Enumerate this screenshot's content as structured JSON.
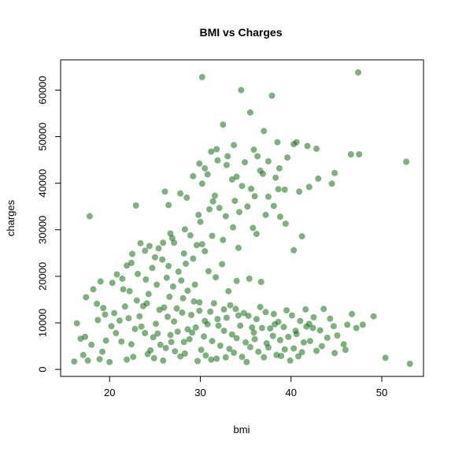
{
  "chart_data": {
    "type": "scatter",
    "title": "BMI vs Charges",
    "xlabel": "bmi",
    "ylabel": "charges",
    "xlim": [
      14.6,
      54.6
    ],
    "ylim": [
      -1500,
      66500
    ],
    "x_ticks": [
      20,
      30,
      40,
      50
    ],
    "y_ticks": [
      0,
      10000,
      20000,
      30000,
      40000,
      50000,
      60000
    ],
    "point_color": "#006400",
    "point_opacity": 0.5,
    "grid": false,
    "legend": "none",
    "series": [
      {
        "points": [
          [
            17.8,
            32900
          ],
          [
            22.9,
            35200
          ],
          [
            30.2,
            62800
          ],
          [
            34.5,
            60000
          ],
          [
            47.4,
            63800
          ],
          [
            37.9,
            58800
          ],
          [
            35.5,
            55200
          ],
          [
            32.5,
            52600
          ],
          [
            37.0,
            51200
          ],
          [
            38.5,
            48800
          ],
          [
            40.3,
            48400
          ],
          [
            40.6,
            48800
          ],
          [
            41.8,
            48000
          ],
          [
            42.8,
            47400
          ],
          [
            46.6,
            46200
          ],
          [
            47.5,
            46200
          ],
          [
            52.7,
            44600
          ],
          [
            44.8,
            42200
          ],
          [
            43.0,
            41000
          ],
          [
            44.5,
            39900
          ],
          [
            40.9,
            38200
          ],
          [
            42.0,
            39200
          ],
          [
            26.1,
            38200
          ],
          [
            27.8,
            37800
          ],
          [
            36.0,
            37200
          ],
          [
            38.1,
            35100
          ],
          [
            28.5,
            36900
          ],
          [
            26.5,
            35300
          ],
          [
            32.1,
            34700
          ],
          [
            35.8,
            30400
          ],
          [
            37.2,
            33200
          ],
          [
            41.2,
            28600
          ],
          [
            40.3,
            25600
          ],
          [
            31.2,
            46800
          ],
          [
            31.8,
            47300
          ],
          [
            33.0,
            45800
          ],
          [
            29.9,
            44200
          ],
          [
            31.9,
            44900
          ],
          [
            34.9,
            44500
          ],
          [
            36.3,
            45800
          ],
          [
            37.5,
            44700
          ],
          [
            39.6,
            45500
          ],
          [
            38.7,
            43200
          ],
          [
            30.8,
            41900
          ],
          [
            33.5,
            40800
          ],
          [
            36.9,
            42000
          ],
          [
            38.3,
            41200
          ],
          [
            30.2,
            39900
          ],
          [
            34.6,
            39400
          ],
          [
            39.3,
            38600
          ],
          [
            31.6,
            37300
          ],
          [
            33.8,
            36200
          ],
          [
            35.2,
            35000
          ],
          [
            31.0,
            34400
          ],
          [
            29.8,
            33200
          ],
          [
            33.6,
            30500
          ],
          [
            32.5,
            27800
          ],
          [
            30.2,
            26900
          ],
          [
            34.0,
            19000
          ],
          [
            35.4,
            19500
          ],
          [
            36.7,
            18800
          ],
          [
            27.1,
            27200
          ],
          [
            25.4,
            26000
          ],
          [
            23.9,
            25500
          ],
          [
            22.5,
            24800
          ],
          [
            25.8,
            23600
          ],
          [
            28.4,
            22700
          ],
          [
            27.6,
            21000
          ],
          [
            24.7,
            21800
          ],
          [
            23.1,
            20500
          ],
          [
            26.3,
            19700
          ],
          [
            27.9,
            19100
          ],
          [
            29.4,
            18200
          ],
          [
            21.4,
            19500
          ],
          [
            20.3,
            18600
          ],
          [
            19.0,
            18900
          ],
          [
            18.2,
            17200
          ],
          [
            22.2,
            16800
          ],
          [
            24.3,
            16200
          ],
          [
            26.6,
            15600
          ],
          [
            28.1,
            15300
          ],
          [
            29.9,
            14400
          ],
          [
            17.4,
            15500
          ],
          [
            18.6,
            14100
          ],
          [
            16.4,
            9900
          ],
          [
            16.8,
            6600
          ],
          [
            17.3,
            7000
          ],
          [
            18.0,
            5300
          ],
          [
            17.1,
            3100
          ],
          [
            16.1,
            1700
          ],
          [
            17.6,
            1900
          ],
          [
            18.9,
            2200
          ],
          [
            20.5,
            12100
          ],
          [
            21.1,
            10500
          ],
          [
            20.7,
            7800
          ],
          [
            19.6,
            6200
          ],
          [
            19.2,
            3800
          ],
          [
            20.0,
            1600
          ],
          [
            21.9,
            2100
          ],
          [
            22.4,
            5400
          ],
          [
            22.8,
            8700
          ],
          [
            23.3,
            11400
          ],
          [
            23.7,
            13600
          ],
          [
            24.2,
            3300
          ],
          [
            24.8,
            6900
          ],
          [
            25.1,
            9800
          ],
          [
            25.5,
            12800
          ],
          [
            25.9,
            1900
          ],
          [
            26.2,
            4600
          ],
          [
            26.7,
            7400
          ],
          [
            27.1,
            10300
          ],
          [
            27.4,
            13100
          ],
          [
            27.8,
            2800
          ],
          [
            28.2,
            5900
          ],
          [
            28.6,
            8600
          ],
          [
            29.0,
            11700
          ],
          [
            29.3,
            14600
          ],
          [
            29.7,
            1800
          ],
          [
            30.1,
            4200
          ],
          [
            30.4,
            7100
          ],
          [
            30.8,
            9700
          ],
          [
            31.1,
            12400
          ],
          [
            31.5,
            14200
          ],
          [
            31.8,
            2300
          ],
          [
            32.2,
            5100
          ],
          [
            32.6,
            8300
          ],
          [
            32.9,
            11100
          ],
          [
            33.3,
            13800
          ],
          [
            33.7,
            3600
          ],
          [
            34.0,
            6700
          ],
          [
            34.4,
            9400
          ],
          [
            34.8,
            12100
          ],
          [
            35.1,
            1600
          ],
          [
            35.5,
            4800
          ],
          [
            35.9,
            7900
          ],
          [
            36.2,
            10800
          ],
          [
            36.6,
            13400
          ],
          [
            37.0,
            2600
          ],
          [
            37.3,
            5600
          ],
          [
            37.7,
            8800
          ],
          [
            38.1,
            11900
          ],
          [
            38.4,
            3100
          ],
          [
            38.8,
            6300
          ],
          [
            39.2,
            9100
          ],
          [
            39.5,
            12700
          ],
          [
            39.9,
            1900
          ],
          [
            40.3,
            4500
          ],
          [
            40.6,
            7600
          ],
          [
            41.0,
            10400
          ],
          [
            41.4,
            5800
          ],
          [
            41.7,
            9200
          ],
          [
            42.1,
            6100
          ],
          [
            42.5,
            11200
          ],
          [
            42.8,
            4000
          ],
          [
            43.2,
            8400
          ],
          [
            43.6,
            13000
          ],
          [
            44.0,
            6800
          ],
          [
            44.3,
            10900
          ],
          [
            44.7,
            9300
          ],
          [
            45.1,
            7300
          ],
          [
            45.8,
            5400
          ],
          [
            46.2,
            9600
          ],
          [
            46.7,
            11900
          ],
          [
            47.2,
            8900
          ],
          [
            47.9,
            9600
          ],
          [
            49.1,
            11400
          ],
          [
            50.4,
            2500
          ],
          [
            53.1,
            1200
          ],
          [
            21.3,
            6000
          ],
          [
            22.6,
            2700
          ],
          [
            23.5,
            9200
          ],
          [
            24.1,
            14200
          ],
          [
            24.9,
            2400
          ],
          [
            25.6,
            5300
          ],
          [
            26.4,
            11300
          ],
          [
            27.2,
            3900
          ],
          [
            28.0,
            12200
          ],
          [
            28.8,
            6500
          ],
          [
            29.5,
            9000
          ],
          [
            30.6,
            3000
          ],
          [
            31.3,
            6100
          ],
          [
            32.0,
            9400
          ],
          [
            32.8,
            2600
          ],
          [
            33.5,
            7500
          ],
          [
            34.2,
            11600
          ],
          [
            35.0,
            5800
          ],
          [
            35.7,
            9000
          ],
          [
            36.4,
            3800
          ],
          [
            37.2,
            12300
          ],
          [
            38.0,
            7200
          ],
          [
            38.6,
            10200
          ],
          [
            39.3,
            4300
          ],
          [
            40.1,
            11600
          ],
          [
            40.8,
            2800
          ],
          [
            41.6,
            12900
          ],
          [
            42.4,
            8900
          ],
          [
            20.2,
            9300
          ],
          [
            19.5,
            11800
          ],
          [
            18.7,
            10600
          ],
          [
            21.7,
            13500
          ],
          [
            22.1,
            11000
          ],
          [
            23.9,
            7800
          ],
          [
            24.5,
            4100
          ],
          [
            25.3,
            7700
          ],
          [
            26.0,
            13300
          ],
          [
            26.8,
            5900
          ],
          [
            27.5,
            8100
          ],
          [
            28.3,
            3400
          ],
          [
            29.1,
            7900
          ],
          [
            29.9,
            12600
          ],
          [
            30.5,
            10400
          ],
          [
            31.2,
            2100
          ],
          [
            31.9,
            10800
          ],
          [
            32.6,
            12900
          ],
          [
            33.2,
            4400
          ],
          [
            33.9,
            13000
          ],
          [
            34.6,
            2700
          ],
          [
            35.3,
            11500
          ],
          [
            36.0,
            6500
          ],
          [
            36.8,
            8900
          ],
          [
            37.5,
            4700
          ],
          [
            38.2,
            9700
          ],
          [
            38.9,
            2900
          ],
          [
            39.7,
            7000
          ],
          [
            40.5,
            8300
          ],
          [
            41.2,
            3700
          ],
          [
            42.0,
            9800
          ],
          [
            43.4,
            5000
          ],
          [
            44.8,
            3500
          ],
          [
            46.0,
            4200
          ],
          [
            24.4,
            26500
          ],
          [
            25.0,
            24100
          ],
          [
            23.4,
            27100
          ],
          [
            26.9,
            28200
          ],
          [
            28.9,
            28800
          ],
          [
            30.5,
            25400
          ],
          [
            29.2,
            23800
          ],
          [
            27.0,
            17800
          ],
          [
            28.6,
            16900
          ],
          [
            30.9,
            21100
          ],
          [
            31.7,
            19800
          ],
          [
            25.2,
            18200
          ],
          [
            21.9,
            22300
          ],
          [
            23.0,
            14800
          ],
          [
            19.3,
            13200
          ],
          [
            32.4,
            22600
          ],
          [
            33.1,
            16800
          ],
          [
            34.2,
            26100
          ],
          [
            36.2,
            29100
          ],
          [
            38.8,
            32800
          ],
          [
            37.5,
            37100
          ],
          [
            39.4,
            31300
          ],
          [
            35.6,
            38800
          ],
          [
            34.0,
            41400
          ],
          [
            32.9,
            43900
          ],
          [
            30.5,
            43200
          ],
          [
            29.2,
            41500
          ],
          [
            35.9,
            47200
          ],
          [
            33.7,
            48200
          ],
          [
            38.6,
            38700
          ],
          [
            36.6,
            42700
          ],
          [
            31.4,
            36100
          ],
          [
            32.8,
            32900
          ],
          [
            34.3,
            33800
          ],
          [
            30.0,
            31700
          ],
          [
            28.3,
            30100
          ],
          [
            26.7,
            29200
          ],
          [
            25.9,
            27200
          ],
          [
            22.4,
            22900
          ],
          [
            20.8,
            20400
          ],
          [
            21.5,
            17200
          ],
          [
            24.0,
            19300
          ],
          [
            26.5,
            22200
          ],
          [
            28.2,
            24900
          ],
          [
            29.6,
            26700
          ],
          [
            31.3,
            28700
          ]
        ]
      }
    ]
  }
}
